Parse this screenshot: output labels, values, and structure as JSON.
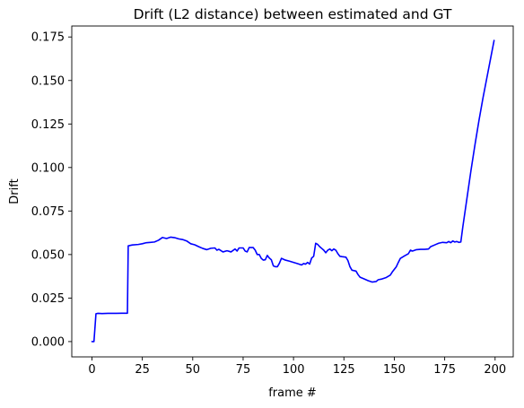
{
  "chart_data": {
    "type": "line",
    "title": "Drift (L2 distance) between estimated and GT",
    "xlabel": "frame #",
    "ylabel": "Drift",
    "xlim": [
      -10,
      209
    ],
    "ylim": [
      -0.0088,
      0.1813
    ],
    "x_ticks": [
      0,
      25,
      50,
      75,
      100,
      125,
      150,
      175,
      200
    ],
    "y_ticks": [
      0.0,
      0.025,
      0.05,
      0.075,
      0.1,
      0.125,
      0.15,
      0.175
    ],
    "y_tick_labels": [
      "0.000",
      "0.025",
      "0.050",
      "0.075",
      "0.100",
      "0.125",
      "0.150",
      "0.175"
    ],
    "grid": false,
    "legend": "none",
    "series": [
      {
        "color": "#0000ff",
        "points": [
          [
            0,
            0.0
          ],
          [
            1,
            0.0
          ],
          [
            2,
            0.016
          ],
          [
            3,
            0.0162
          ],
          [
            5,
            0.0161
          ],
          [
            8,
            0.0162
          ],
          [
            12,
            0.0162
          ],
          [
            15,
            0.0163
          ],
          [
            17,
            0.0163
          ],
          [
            17.6,
            0.0163
          ],
          [
            18,
            0.055
          ],
          [
            20,
            0.0555
          ],
          [
            23,
            0.0558
          ],
          [
            25,
            0.0562
          ],
          [
            27,
            0.0568
          ],
          [
            29,
            0.057
          ],
          [
            31,
            0.0572
          ],
          [
            33,
            0.0582
          ],
          [
            35,
            0.0598
          ],
          [
            37,
            0.0592
          ],
          [
            39,
            0.06
          ],
          [
            41,
            0.0597
          ],
          [
            43,
            0.059
          ],
          [
            45,
            0.0586
          ],
          [
            47,
            0.0578
          ],
          [
            49,
            0.0562
          ],
          [
            51,
            0.0556
          ],
          [
            53,
            0.0545
          ],
          [
            55,
            0.0535
          ],
          [
            57,
            0.0528
          ],
          [
            59,
            0.0536
          ],
          [
            61,
            0.0538
          ],
          [
            62,
            0.0525
          ],
          [
            63,
            0.053
          ],
          [
            65,
            0.0515
          ],
          [
            67,
            0.0522
          ],
          [
            69,
            0.0515
          ],
          [
            71,
            0.0532
          ],
          [
            72,
            0.052
          ],
          [
            73,
            0.0538
          ],
          [
            75,
            0.0538
          ],
          [
            76,
            0.052
          ],
          [
            77,
            0.0515
          ],
          [
            78,
            0.054
          ],
          [
            80,
            0.054
          ],
          [
            81,
            0.0525
          ],
          [
            82,
            0.05
          ],
          [
            83,
            0.05
          ],
          [
            84,
            0.0478
          ],
          [
            85,
            0.0468
          ],
          [
            86,
            0.047
          ],
          [
            87,
            0.0495
          ],
          [
            88,
            0.048
          ],
          [
            89,
            0.047
          ],
          [
            90,
            0.0435
          ],
          [
            91,
            0.043
          ],
          [
            92,
            0.043
          ],
          [
            93,
            0.045
          ],
          [
            94,
            0.0478
          ],
          [
            96,
            0.0468
          ],
          [
            98,
            0.0462
          ],
          [
            100,
            0.0455
          ],
          [
            102,
            0.0448
          ],
          [
            104,
            0.044
          ],
          [
            105,
            0.0448
          ],
          [
            106,
            0.0445
          ],
          [
            107,
            0.0455
          ],
          [
            108,
            0.0445
          ],
          [
            109,
            0.048
          ],
          [
            110,
            0.049
          ],
          [
            111,
            0.0565
          ],
          [
            112,
            0.0558
          ],
          [
            113,
            0.0545
          ],
          [
            114,
            0.0535
          ],
          [
            115,
            0.0525
          ],
          [
            116,
            0.051
          ],
          [
            117,
            0.0525
          ],
          [
            118,
            0.0532
          ],
          [
            119,
            0.0522
          ],
          [
            120,
            0.0532
          ],
          [
            121,
            0.0525
          ],
          [
            122,
            0.0505
          ],
          [
            123,
            0.049
          ],
          [
            124,
            0.0488
          ],
          [
            126,
            0.0485
          ],
          [
            127,
            0.0465
          ],
          [
            128,
            0.043
          ],
          [
            129,
            0.041
          ],
          [
            131,
            0.0405
          ],
          [
            132,
            0.0385
          ],
          [
            133,
            0.037
          ],
          [
            135,
            0.036
          ],
          [
            137,
            0.035
          ],
          [
            139,
            0.0342
          ],
          [
            141,
            0.0345
          ],
          [
            142,
            0.0355
          ],
          [
            144,
            0.036
          ],
          [
            146,
            0.0368
          ],
          [
            148,
            0.0382
          ],
          [
            149,
            0.04
          ],
          [
            150,
            0.0415
          ],
          [
            151,
            0.043
          ],
          [
            152,
            0.0455
          ],
          [
            153,
            0.0478
          ],
          [
            155,
            0.0492
          ],
          [
            157,
            0.0505
          ],
          [
            158,
            0.0525
          ],
          [
            159,
            0.052
          ],
          [
            161,
            0.0528
          ],
          [
            163,
            0.053
          ],
          [
            165,
            0.053
          ],
          [
            167,
            0.0532
          ],
          [
            168,
            0.0545
          ],
          [
            170,
            0.0555
          ],
          [
            172,
            0.0565
          ],
          [
            174,
            0.057
          ],
          [
            176,
            0.0568
          ],
          [
            177,
            0.0575
          ],
          [
            178,
            0.0568
          ],
          [
            179,
            0.0578
          ],
          [
            180,
            0.0572
          ],
          [
            181,
            0.0575
          ],
          [
            182,
            0.057
          ],
          [
            183,
            0.0572
          ],
          [
            184,
            0.066
          ],
          [
            186,
            0.082
          ],
          [
            188,
            0.098
          ],
          [
            190,
            0.113
          ],
          [
            192,
            0.127
          ],
          [
            194,
            0.14
          ],
          [
            196,
            0.152
          ],
          [
            198,
            0.164
          ],
          [
            199.5,
            0.173
          ]
        ]
      }
    ]
  }
}
